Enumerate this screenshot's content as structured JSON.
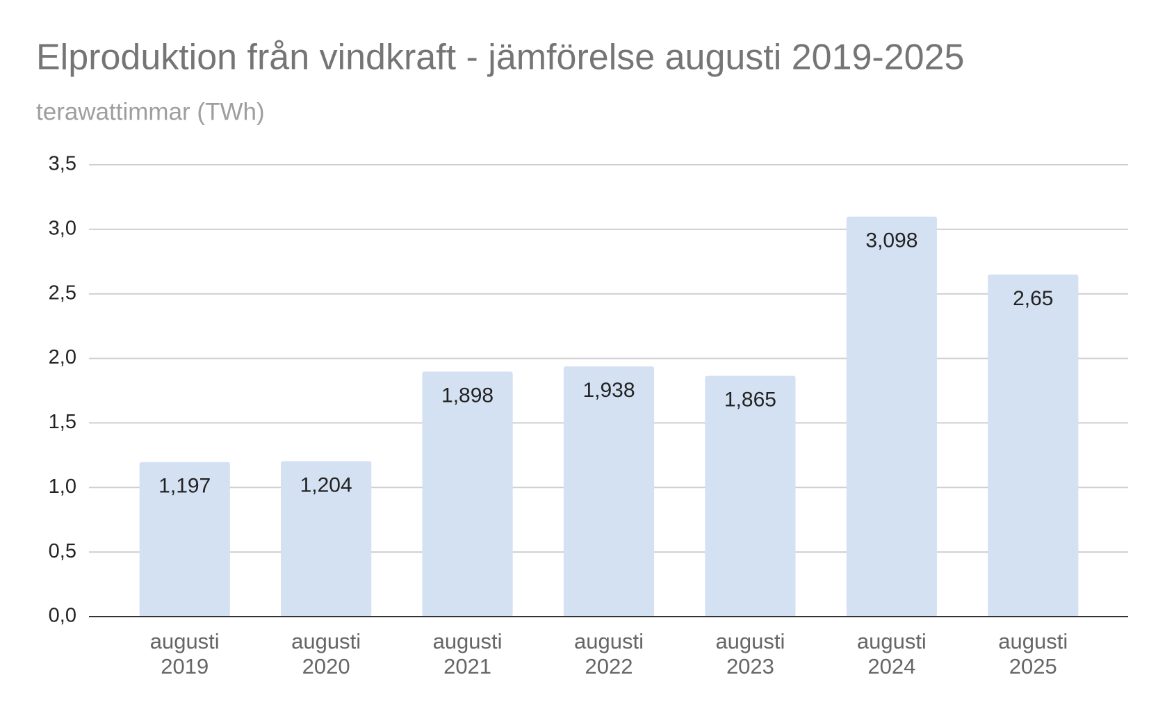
{
  "chart_data": {
    "type": "bar",
    "title": "Elproduktion från vindkraft - jämförelse augusti 2019-2025",
    "subtitle": "terawattimmar (TWh)",
    "categories": [
      "augusti 2019",
      "augusti 2020",
      "augusti 2021",
      "augusti 2022",
      "augusti 2023",
      "augusti 2024",
      "augusti 2025"
    ],
    "values": [
      1.197,
      1.204,
      1.898,
      1.938,
      1.865,
      3.098,
      2.65
    ],
    "value_labels": [
      "1,197",
      "1,204",
      "1,898",
      "1,938",
      "1,865",
      "3,098",
      "2,65"
    ],
    "color": "#d4e1f2",
    "ylim": [
      0,
      3.5
    ],
    "yticks": [
      {
        "value": 0,
        "label": "0,0"
      },
      {
        "value": 0.5,
        "label": "0,5"
      },
      {
        "value": 1,
        "label": "1,0"
      },
      {
        "value": 1.5,
        "label": "1,5"
      },
      {
        "value": 2,
        "label": "2,0"
      },
      {
        "value": 2.5,
        "label": "2,5"
      },
      {
        "value": 3,
        "label": "3,0"
      },
      {
        "value": 3.5,
        "label": "3,5"
      }
    ],
    "grid": true
  }
}
